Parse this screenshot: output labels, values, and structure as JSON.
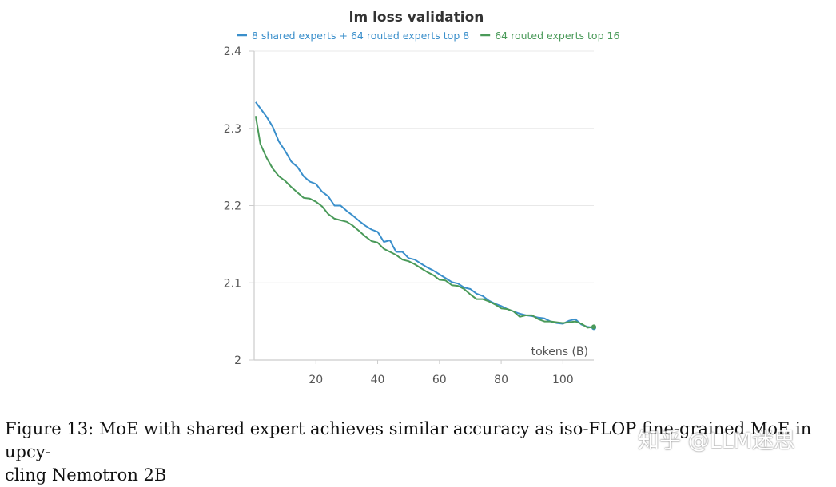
{
  "chart_data": {
    "type": "line",
    "title": "lm loss validation",
    "xlabel": "tokens (B)",
    "ylabel": "",
    "xlim": [
      0,
      110
    ],
    "ylim": [
      2.0,
      2.4
    ],
    "xticks": [
      20,
      40,
      60,
      80,
      100
    ],
    "xtick_labels": [
      "20",
      "40",
      "60",
      "80",
      "100"
    ],
    "yticks": [
      2.0,
      2.1,
      2.2,
      2.3,
      2.4
    ],
    "ytick_labels": [
      "2",
      "2.1",
      "2.2",
      "2.3",
      "2.4"
    ],
    "grid": "horizontal",
    "legend_position": "top",
    "series": [
      {
        "name": "8 shared experts + 64 routed experts top 8",
        "color": "#3a8fcb",
        "x": [
          0.5,
          2,
          4,
          6,
          8,
          10,
          12,
          14,
          16,
          18,
          20,
          22,
          24,
          26,
          28,
          30,
          32,
          34,
          36,
          38,
          40,
          42,
          44,
          45,
          46,
          48,
          50,
          52,
          54,
          56,
          58,
          60,
          62,
          64,
          66,
          68,
          70,
          72,
          74,
          76,
          78,
          80,
          82,
          84,
          86,
          88,
          90,
          92,
          94,
          96,
          98,
          100,
          102,
          104,
          106,
          108,
          110
        ],
        "values": [
          2.334,
          2.326,
          2.315,
          2.302,
          2.283,
          2.271,
          2.257,
          2.25,
          2.238,
          2.231,
          2.228,
          2.218,
          2.212,
          2.2,
          2.2,
          2.193,
          2.187,
          2.18,
          2.174,
          2.169,
          2.166,
          2.153,
          2.155,
          2.147,
          2.14,
          2.14,
          2.132,
          2.13,
          2.125,
          2.12,
          2.116,
          2.111,
          2.106,
          2.101,
          2.099,
          2.094,
          2.092,
          2.086,
          2.083,
          2.077,
          2.073,
          2.07,
          2.066,
          2.063,
          2.06,
          2.058,
          2.057,
          2.055,
          2.054,
          2.05,
          2.048,
          2.047,
          2.051,
          2.053,
          2.046,
          2.043,
          2.042
        ]
      },
      {
        "name": "64 routed experts top 16",
        "color": "#4a9a59",
        "x": [
          0.5,
          2,
          4,
          6,
          8,
          10,
          12,
          14,
          16,
          18,
          20,
          22,
          24,
          26,
          28,
          30,
          32,
          34,
          36,
          38,
          40,
          42,
          44,
          46,
          48,
          50,
          52,
          54,
          56,
          58,
          60,
          62,
          64,
          66,
          68,
          70,
          72,
          74,
          76,
          78,
          80,
          82,
          84,
          86,
          88,
          90,
          92,
          94,
          96,
          98,
          100,
          102,
          104,
          106,
          108,
          110
        ],
        "values": [
          2.316,
          2.28,
          2.262,
          2.248,
          2.238,
          2.232,
          2.224,
          2.217,
          2.21,
          2.209,
          2.205,
          2.199,
          2.189,
          2.183,
          2.181,
          2.179,
          2.174,
          2.167,
          2.16,
          2.154,
          2.152,
          2.144,
          2.14,
          2.136,
          2.13,
          2.128,
          2.124,
          2.119,
          2.114,
          2.11,
          2.104,
          2.103,
          2.097,
          2.096,
          2.092,
          2.085,
          2.079,
          2.079,
          2.076,
          2.072,
          2.067,
          2.066,
          2.063,
          2.056,
          2.058,
          2.058,
          2.053,
          2.05,
          2.05,
          2.049,
          2.048,
          2.049,
          2.05,
          2.047,
          2.042,
          2.043
        ]
      }
    ]
  },
  "caption": "Figure 13: MoE with shared expert achieves similar accuracy as iso-FLOP fine-grained MoE in upcy-\ncling Nemotron 2B",
  "watermark": "知乎 @LLM迷思"
}
